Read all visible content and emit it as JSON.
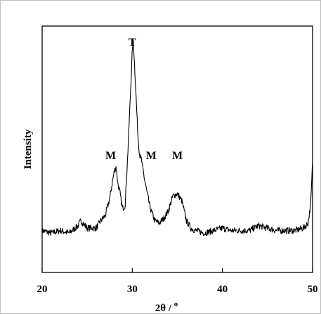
{
  "chart_data": {
    "type": "line",
    "xlabel": "2θ / ",
    "xlabel_degree": "o",
    "ylabel": "Intensity",
    "xlim": [
      20,
      50
    ],
    "ylim": [
      0,
      100
    ],
    "x_ticks": [
      20,
      30,
      40,
      50
    ],
    "y_ticks_labeled": false,
    "grid": false,
    "legend": "none",
    "line_color": "#000000",
    "annotations": [
      {
        "text": "T",
        "x": 30.0,
        "y": 92
      },
      {
        "text": "M",
        "x": 27.6,
        "y": 46
      },
      {
        "text": "M",
        "x": 32.1,
        "y": 46
      },
      {
        "text": "M",
        "x": 35.0,
        "y": 46
      }
    ],
    "series": [
      {
        "x": [
          20.0,
          21.0,
          22.0,
          23.0,
          24.0,
          24.3,
          25.0,
          26.0,
          26.5,
          27.0,
          27.5,
          27.8,
          28.0,
          28.2,
          28.4,
          28.6,
          28.9,
          29.2,
          29.5,
          29.8,
          30.0,
          30.1,
          30.2,
          30.4,
          30.6,
          30.8,
          31.0,
          31.3,
          31.6,
          32.0,
          32.5,
          33.0,
          33.5,
          34.0,
          34.5,
          35.0,
          35.5,
          36.0,
          36.5,
          37.0,
          38.0,
          39.0,
          40.0,
          41.0,
          42.0,
          43.0,
          44.0,
          45.0,
          46.0,
          47.0,
          48.0,
          49.0,
          49.5,
          49.8,
          50.0
        ],
        "y": [
          17,
          16,
          17,
          16,
          19,
          21,
          18,
          18,
          21,
          23,
          30,
          37,
          41,
          43,
          36,
          33,
          26,
          27,
          48,
          73,
          90,
          95,
          88,
          73,
          57,
          48,
          46,
          39,
          33,
          26,
          21,
          20,
          22,
          25,
          31,
          32,
          29,
          21,
          18,
          17,
          16,
          17,
          18,
          17,
          17,
          17,
          19,
          18,
          17,
          17,
          17,
          18,
          20,
          28,
          45
        ]
      }
    ]
  }
}
